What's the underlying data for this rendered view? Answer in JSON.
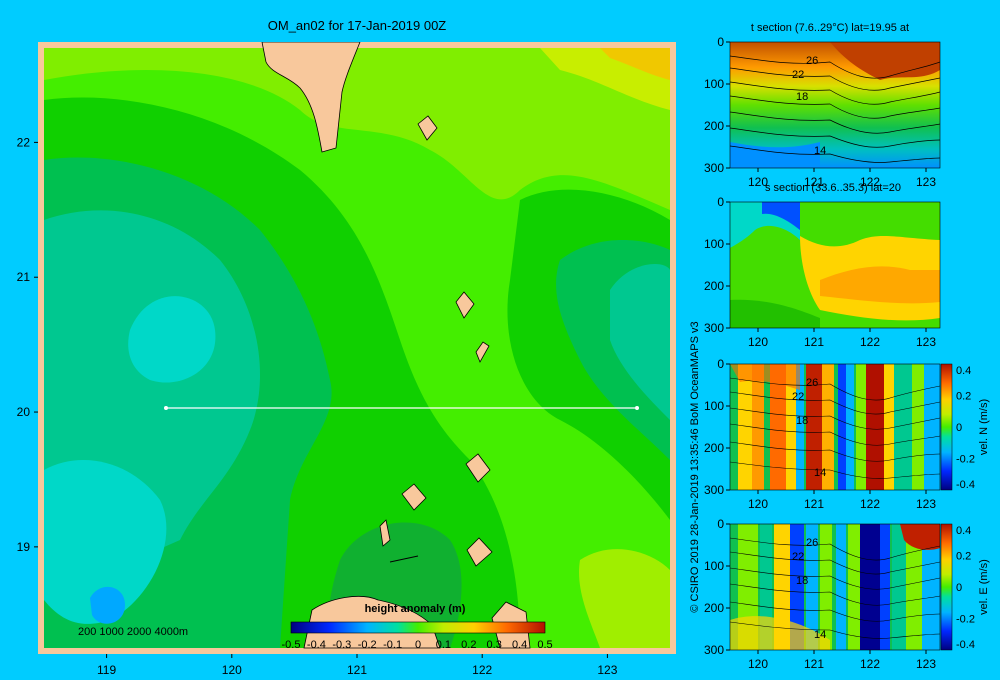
{
  "main_title": "OM_an02 for 17-Jan-2019 00Z",
  "depth_legend": "200  1000  2000  4000m",
  "credit": "© CSIRO 2019  28-Jan-2019 13:35:46 BoM OceanMAPS v3",
  "colors": {
    "background": "#00ccff",
    "land": "#f8c89c",
    "section_line": "#ffffff"
  },
  "chart_data": [
    {
      "type": "heatmap",
      "title": "OM_an02 for 17-Jan-2019 00Z",
      "x_ticks": [
        "119",
        "120",
        "121",
        "122",
        "123"
      ],
      "y_ticks": [
        "22",
        "21",
        "20",
        "19"
      ],
      "xlim": [
        118.5,
        123.5
      ],
      "ylim": [
        18.25,
        22.7
      ],
      "section_line": {
        "lon_start": 119.5,
        "lon_end": 123.2,
        "lat": 20
      },
      "colorbar": {
        "title": "height anomaly (m)",
        "ticks": [
          "-0.5",
          "-0.4",
          "-0.3",
          "-0.2",
          "-0.1",
          "0",
          "0.1",
          "0.2",
          "0.3",
          "0.4",
          "0.5"
        ],
        "range": [
          -0.5,
          0.5
        ]
      }
    },
    {
      "type": "heatmap",
      "title": "t section (7.6..29°C) lat=19.95 at",
      "x_ticks": [
        "120",
        "121",
        "122",
        "123"
      ],
      "y_ticks": [
        "0",
        "100",
        "200",
        "300"
      ],
      "contour_labels": [
        "26",
        "22",
        "18",
        "14"
      ]
    },
    {
      "type": "heatmap",
      "title": "s section (33.6..35.3) lat=20",
      "x_ticks": [
        "120",
        "121",
        "122",
        "123"
      ],
      "y_ticks": [
        "0",
        "100",
        "200",
        "300"
      ]
    },
    {
      "type": "heatmap",
      "x_ticks": [
        "120",
        "121",
        "122",
        "123"
      ],
      "y_ticks": [
        "0",
        "100",
        "200",
        "300"
      ],
      "contour_labels": [
        "26",
        "22",
        "18",
        "14"
      ],
      "colorbar": {
        "label": "vel. N (m/s)",
        "ticks": [
          "0.4",
          "0.2",
          "0",
          "-0.2",
          "-0.4"
        ],
        "range": [
          -0.4,
          0.4
        ]
      }
    },
    {
      "type": "heatmap",
      "x_ticks": [
        "120",
        "121",
        "122",
        "123"
      ],
      "y_ticks": [
        "0",
        "100",
        "200",
        "300"
      ],
      "contour_labels": [
        "26",
        "22",
        "18",
        "14"
      ],
      "colorbar": {
        "label": "vel. E (m/s)",
        "ticks": [
          "0.4",
          "0.2",
          "0",
          "-0.2",
          "-0.4"
        ],
        "range": [
          -0.4,
          0.4
        ]
      }
    }
  ]
}
